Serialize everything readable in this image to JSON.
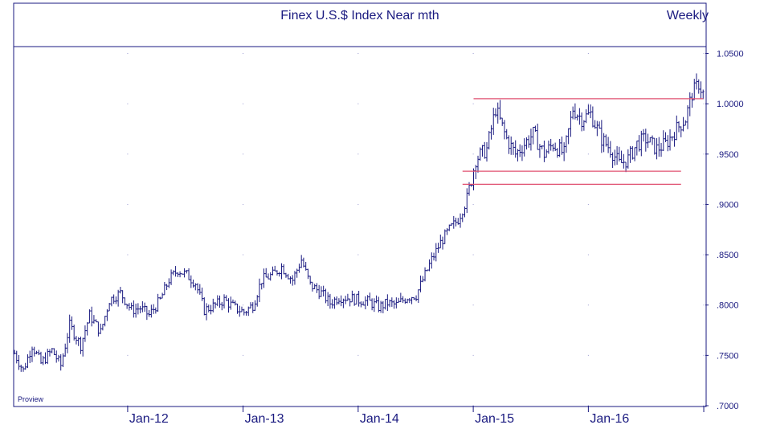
{
  "colors": {
    "frame": "#1a1a80",
    "series": "#1a1a80",
    "label": "#1a1a80",
    "grid_dot": "#9a9ad0",
    "channel_line": "#e05070",
    "background": "#ffffff"
  },
  "chart_data": {
    "type": "bar",
    "bar_style": "ohlc",
    "title": "Finex U.S.$ Index Near mth",
    "period_label": "Weekly",
    "watermark": "Proview",
    "xlabel": "",
    "ylabel": "",
    "x_range": [
      "2011-01-07",
      "2017-01-06"
    ],
    "ylim": [
      0.7,
      1.056
    ],
    "y_ticks": [
      0.7,
      0.75,
      0.8,
      0.85,
      0.9,
      0.95,
      1.0,
      1.05
    ],
    "y_tick_labels": [
      ".7000",
      ".7500",
      ".8000",
      ".8500",
      ".9000",
      ".9500",
      "1.0000",
      "1.0500"
    ],
    "x_ticks": [
      "2012-01-01",
      "2013-01-01",
      "2014-01-01",
      "2015-01-01",
      "2016-01-01",
      "2017-01-01"
    ],
    "x_tick_labels": [
      "Jan-12",
      "Jan-13",
      "Jan-14",
      "Jan-15",
      "Jan-16",
      ""
    ],
    "grid": "dotted",
    "key_prices": [
      [
        "2011-01-07",
        0.752
      ],
      [
        "2011-02-04",
        0.735
      ],
      [
        "2011-03-04",
        0.76
      ],
      [
        "2011-04-01",
        0.742
      ],
      [
        "2011-05-06",
        0.755
      ],
      [
        "2011-06-03",
        0.74
      ],
      [
        "2011-07-01",
        0.78
      ],
      [
        "2011-08-05",
        0.76
      ],
      [
        "2011-09-02",
        0.79
      ],
      [
        "2011-10-07",
        0.773
      ],
      [
        "2011-11-04",
        0.805
      ],
      [
        "2011-12-09",
        0.812
      ],
      [
        "2012-01-13",
        0.795
      ],
      [
        "2012-02-10",
        0.797
      ],
      [
        "2012-03-09",
        0.79
      ],
      [
        "2012-04-13",
        0.805
      ],
      [
        "2012-05-11",
        0.825
      ],
      [
        "2012-06-08",
        0.835
      ],
      [
        "2012-07-06",
        0.83
      ],
      [
        "2012-08-03",
        0.822
      ],
      [
        "2012-08-31",
        0.795
      ],
      [
        "2012-10-05",
        0.8
      ],
      [
        "2012-11-02",
        0.805
      ],
      [
        "2012-12-07",
        0.797
      ],
      [
        "2013-01-04",
        0.793
      ],
      [
        "2013-02-01",
        0.8
      ],
      [
        "2013-03-01",
        0.825
      ],
      [
        "2013-04-05",
        0.83
      ],
      [
        "2013-05-03",
        0.838
      ],
      [
        "2013-06-07",
        0.825
      ],
      [
        "2013-07-05",
        0.845
      ],
      [
        "2013-08-02",
        0.82
      ],
      [
        "2013-09-06",
        0.812
      ],
      [
        "2013-10-04",
        0.802
      ],
      [
        "2013-11-01",
        0.808
      ],
      [
        "2013-12-06",
        0.807
      ],
      [
        "2014-01-03",
        0.805
      ],
      [
        "2014-02-07",
        0.803
      ],
      [
        "2014-03-07",
        0.798
      ],
      [
        "2014-04-04",
        0.802
      ],
      [
        "2014-05-02",
        0.8
      ],
      [
        "2014-06-06",
        0.808
      ],
      [
        "2014-07-04",
        0.81
      ],
      [
        "2014-07-25",
        0.825
      ],
      [
        "2014-08-22",
        0.845
      ],
      [
        "2014-09-19",
        0.862
      ],
      [
        "2014-10-17",
        0.875
      ],
      [
        "2014-11-14",
        0.885
      ],
      [
        "2014-12-12",
        0.905
      ],
      [
        "2015-01-09",
        0.945
      ],
      [
        "2015-02-13",
        0.955
      ],
      [
        "2015-03-13",
        0.995
      ],
      [
        "2015-04-17",
        0.965
      ],
      [
        "2015-05-15",
        0.95
      ],
      [
        "2015-06-12",
        0.96
      ],
      [
        "2015-07-10",
        0.97
      ],
      [
        "2015-08-14",
        0.95
      ],
      [
        "2015-09-11",
        0.96
      ],
      [
        "2015-10-16",
        0.95
      ],
      [
        "2015-11-13",
        0.995
      ],
      [
        "2015-12-11",
        0.985
      ],
      [
        "2016-01-08",
        0.99
      ],
      [
        "2016-02-12",
        0.965
      ],
      [
        "2016-03-11",
        0.955
      ],
      [
        "2016-04-08",
        0.94
      ],
      [
        "2016-05-06",
        0.945
      ],
      [
        "2016-06-03",
        0.96
      ],
      [
        "2016-07-01",
        0.965
      ],
      [
        "2016-08-05",
        0.955
      ],
      [
        "2016-09-02",
        0.96
      ],
      [
        "2016-10-07",
        0.975
      ],
      [
        "2016-11-04",
        0.985
      ],
      [
        "2016-11-25",
        1.01
      ],
      [
        "2016-12-16",
        1.02
      ],
      [
        "2016-12-30",
        1.01
      ]
    ],
    "channel_lines": [
      {
        "x": [
          "2015-01-02",
          "2016-12-30"
        ],
        "y": [
          1.005,
          1.005
        ]
      },
      {
        "x": [
          "2014-11-28",
          "2016-10-21"
        ],
        "y": [
          0.933,
          0.933
        ]
      },
      {
        "x": [
          "2014-11-28",
          "2016-10-21"
        ],
        "y": [
          0.92,
          0.92
        ]
      }
    ]
  }
}
